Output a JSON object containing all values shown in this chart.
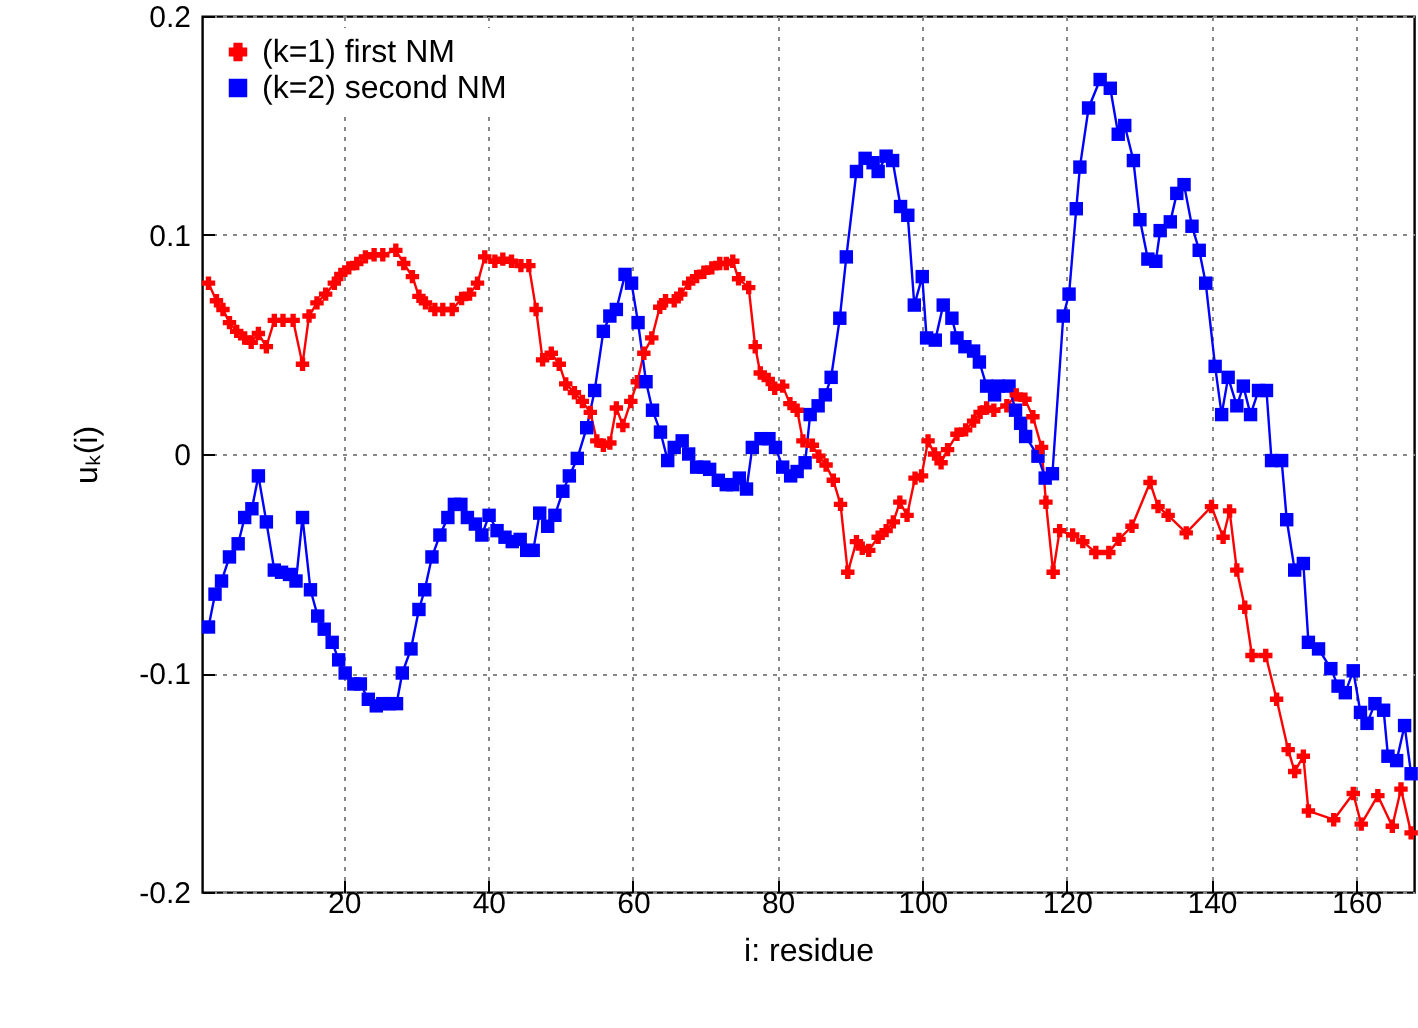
{
  "chart_data": {
    "type": "line",
    "xlabel": "i: residue",
    "ylabel": "uₖ(i)",
    "xlim": [
      0.4,
      168
    ],
    "ylim": [
      -0.2,
      0.2
    ],
    "xticks": [
      20,
      40,
      60,
      80,
      100,
      120,
      140,
      160
    ],
    "yticks": [
      -0.2,
      -0.1,
      0,
      0.1,
      0.2
    ],
    "grid": true,
    "legend": "top left",
    "line_style": "solid",
    "series": [
      {
        "name": "(k=1) first NM",
        "color": "#ff0000",
        "marker": "cross",
        "x": [
          1.3,
          2.4,
          3.3,
          4.2,
          5.2,
          6.3,
          7.2,
          8.2,
          9.3,
          10.4,
          11.6,
          13.0,
          14.3,
          15.2,
          16.3,
          17.5,
          18.7,
          19.6,
          20.7,
          21.8,
          23.0,
          24.2,
          25.4,
          27.2,
          28.3,
          29.5,
          30.4,
          31.3,
          32.6,
          33.7,
          35.0,
          36.3,
          37.4,
          38.5,
          39.5,
          40.9,
          42.0,
          43.2,
          44.5,
          45.6,
          46.6,
          47.5,
          48.7,
          49.8,
          50.7,
          51.9,
          53.0,
          54.1,
          55.0,
          55.9,
          56.8,
          57.7,
          58.6,
          59.7,
          60.6,
          61.5,
          62.6,
          63.7,
          64.5,
          65.7,
          66.6,
          67.7,
          68.8,
          69.8,
          70.9,
          72.0,
          72.9,
          73.8,
          74.6,
          76.0,
          76.9,
          77.6,
          78.7,
          79.6,
          80.7,
          81.7,
          82.7,
          83.5,
          84.8,
          85.7,
          86.7,
          87.7,
          88.7,
          89.7,
          90.9,
          91.7,
          92.6,
          93.9,
          95.0,
          96.0,
          96.9,
          97.9,
          99.0,
          99.9,
          100.8,
          101.7,
          102.6,
          103.5,
          104.8,
          106.0,
          107.1,
          108.0,
          108.9,
          109.9,
          111.7,
          113.0,
          114.2,
          115.3,
          116.5,
          117.1,
          118.1,
          119.0,
          120.8,
          122.2,
          124.0,
          125.8,
          127.2,
          129.0,
          131.5,
          132.6,
          134.0,
          136.5,
          140.0,
          141.6,
          142.5,
          143.5,
          144.6,
          145.6,
          147.5,
          149.0,
          150.6,
          151.5,
          152.7,
          153.4,
          156.9,
          159.6,
          160.7,
          163.0,
          165.0,
          166.2,
          167.6
        ],
        "values": [
          0.078,
          0.07,
          0.066,
          0.06,
          0.056,
          0.053,
          0.051,
          0.055,
          0.049,
          0.061,
          0.061,
          0.061,
          0.041,
          0.063,
          0.069,
          0.073,
          0.078,
          0.082,
          0.085,
          0.087,
          0.09,
          0.091,
          0.091,
          0.093,
          0.087,
          0.081,
          0.072,
          0.069,
          0.066,
          0.066,
          0.066,
          0.071,
          0.073,
          0.078,
          0.09,
          0.088,
          0.089,
          0.088,
          0.086,
          0.086,
          0.066,
          0.043,
          0.046,
          0.041,
          0.032,
          0.028,
          0.024,
          0.019,
          0.006,
          0.004,
          0.005,
          0.021,
          0.013,
          0.024,
          0.033,
          0.046,
          0.053,
          0.067,
          0.07,
          0.07,
          0.073,
          0.078,
          0.081,
          0.083,
          0.085,
          0.087,
          0.087,
          0.088,
          0.08,
          0.076,
          0.049,
          0.037,
          0.034,
          0.03,
          0.031,
          0.023,
          0.02,
          0.006,
          0.004,
          -0.001,
          -0.005,
          -0.012,
          -0.023,
          -0.054,
          -0.04,
          -0.043,
          -0.044,
          -0.038,
          -0.035,
          -0.031,
          -0.022,
          -0.028,
          -0.011,
          -0.01,
          0.006,
          0.0,
          -0.004,
          0.002,
          0.009,
          0.011,
          0.015,
          0.019,
          0.021,
          0.02,
          0.022,
          0.027,
          0.025,
          0.017,
          0.003,
          -0.022,
          -0.054,
          -0.035,
          -0.037,
          -0.04,
          -0.045,
          -0.045,
          -0.039,
          -0.033,
          -0.013,
          -0.024,
          -0.028,
          -0.036,
          -0.024,
          -0.038,
          -0.026,
          -0.053,
          -0.07,
          -0.092,
          -0.092,
          -0.112,
          -0.135,
          -0.145,
          -0.138,
          -0.163,
          -0.167,
          -0.155,
          -0.169,
          -0.156,
          -0.17,
          -0.153,
          -0.173
        ]
      },
      {
        "name": "(k=2) second NM",
        "color": "#0000ff",
        "marker": "square",
        "x": [
          1.3,
          2.2,
          3.1,
          4.2,
          5.4,
          6.3,
          7.3,
          8.2,
          9.3,
          10.4,
          11.4,
          12.5,
          13.4,
          14.3,
          15.4,
          16.4,
          17.3,
          18.4,
          19.3,
          20.2,
          21.4,
          22.3,
          23.4,
          24.5,
          25.4,
          26.3,
          27.3,
          28.1,
          29.3,
          30.4,
          31.2,
          32.2,
          33.3,
          34.4,
          35.3,
          36.2,
          37.1,
          38.2,
          39.1,
          40.1,
          41.2,
          42.3,
          43.3,
          44.4,
          45.3,
          46.2,
          47.1,
          48.2,
          49.2,
          50.3,
          51.2,
          52.3,
          53.6,
          54.7,
          55.9,
          56.8,
          57.7,
          58.9,
          59.8,
          60.7,
          61.8,
          62.7,
          63.8,
          64.8,
          65.7,
          66.8,
          67.7,
          68.8,
          69.8,
          70.6,
          71.8,
          72.9,
          73.8,
          74.7,
          75.7,
          76.5,
          77.7,
          78.8,
          79.7,
          80.7,
          81.8,
          82.7,
          83.8,
          84.5,
          85.6,
          86.6,
          87.4,
          88.6,
          89.5,
          90.9,
          92.1,
          93.2,
          93.9,
          95.0,
          95.9,
          97.0,
          98.0,
          98.9,
          100.0,
          100.6,
          101.8,
          102.9,
          104.1,
          104.8,
          105.9,
          107.1,
          107.9,
          108.9,
          110.0,
          110.5,
          112.0,
          112.9,
          113.6,
          114.3,
          116.0,
          117.0,
          118.0,
          119.5,
          120.3,
          121.3,
          121.8,
          123.0,
          124.6,
          126.0,
          127.1,
          128.0,
          129.2,
          130.1,
          131.2,
          132.3,
          132.9,
          134.3,
          135.2,
          136.2,
          137.3,
          138.3,
          139.2,
          140.5,
          141.4,
          142.3,
          143.5,
          144.4,
          145.4,
          146.5,
          147.6,
          148.3,
          149.7,
          150.4,
          151.5,
          152.7,
          153.4,
          154.8,
          156.5,
          157.5,
          158.5,
          159.6,
          160.6,
          161.5,
          162.6,
          163.8,
          164.4,
          165.6,
          166.7,
          167.6
        ],
        "values": [
          -0.079,
          -0.064,
          -0.058,
          -0.047,
          -0.041,
          -0.029,
          -0.025,
          -0.01,
          -0.031,
          -0.053,
          -0.054,
          -0.055,
          -0.058,
          -0.029,
          -0.062,
          -0.074,
          -0.08,
          -0.086,
          -0.094,
          -0.1,
          -0.105,
          -0.105,
          -0.112,
          -0.115,
          -0.114,
          -0.114,
          -0.114,
          -0.1,
          -0.089,
          -0.071,
          -0.062,
          -0.047,
          -0.037,
          -0.029,
          -0.023,
          -0.023,
          -0.029,
          -0.032,
          -0.037,
          -0.028,
          -0.035,
          -0.038,
          -0.04,
          -0.039,
          -0.044,
          -0.044,
          -0.027,
          -0.033,
          -0.028,
          -0.017,
          -0.01,
          -0.002,
          0.012,
          0.029,
          0.056,
          0.063,
          0.066,
          0.082,
          0.078,
          0.06,
          0.033,
          0.02,
          0.01,
          -0.003,
          0.003,
          0.006,
          0.0,
          -0.006,
          -0.006,
          -0.007,
          -0.012,
          -0.014,
          -0.014,
          -0.011,
          -0.016,
          0.003,
          0.007,
          0.007,
          0.003,
          -0.006,
          -0.01,
          -0.008,
          -0.004,
          0.018,
          0.022,
          0.027,
          0.035,
          0.062,
          0.09,
          0.129,
          0.135,
          0.133,
          0.129,
          0.136,
          0.134,
          0.113,
          0.109,
          0.068,
          0.081,
          0.053,
          0.052,
          0.068,
          0.062,
          0.053,
          0.049,
          0.047,
          0.042,
          0.031,
          0.027,
          0.031,
          0.031,
          0.02,
          0.014,
          0.008,
          -0.001,
          -0.011,
          -0.009,
          0.063,
          0.073,
          0.112,
          0.131,
          0.158,
          0.171,
          0.167,
          0.146,
          0.15,
          0.134,
          0.107,
          0.089,
          0.088,
          0.102,
          0.106,
          0.119,
          0.123,
          0.104,
          0.093,
          0.078,
          0.04,
          0.018,
          0.035,
          0.022,
          0.031,
          0.018,
          0.029,
          0.029,
          -0.003,
          -0.003,
          -0.03,
          -0.053,
          -0.05,
          -0.086,
          -0.089,
          -0.098,
          -0.106,
          -0.109,
          -0.099,
          -0.118,
          -0.123,
          -0.114,
          -0.117,
          -0.138,
          -0.14,
          -0.124,
          -0.146
        ]
      }
    ]
  }
}
